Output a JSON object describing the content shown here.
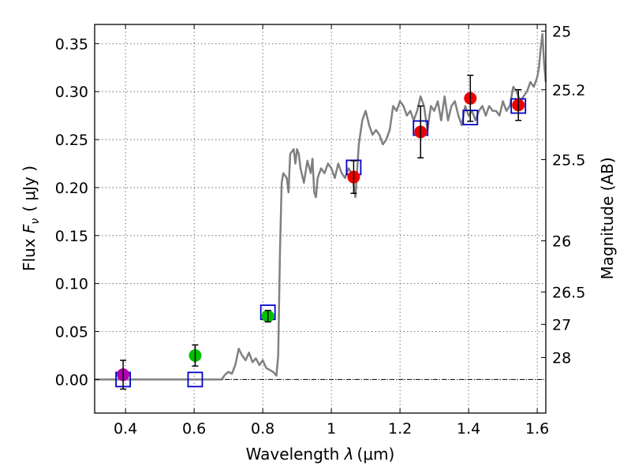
{
  "chart_data": {
    "type": "scatter",
    "title": "",
    "xlabel": {
      "prefix": "Wavelength ",
      "lambda": "λ",
      "unit": "(μm)"
    },
    "ylabel": {
      "prefix": "Flux ",
      "F": "F",
      "nu": "ν",
      "unit": "( μJy )"
    },
    "right_ylabel": "Magnitude (AB)",
    "xlim": [
      0.31,
      1.625
    ],
    "ylim": [
      -0.035,
      0.37
    ],
    "x_ticks": [
      0.4,
      0.6,
      0.8,
      1.0,
      1.2,
      1.4,
      1.6
    ],
    "x_tick_labels": [
      "0.4",
      "0.6",
      "0.8",
      "1",
      "1.2",
      "1.4",
      "1.6"
    ],
    "y_ticks": [
      0.0,
      0.05,
      0.1,
      0.15,
      0.2,
      0.25,
      0.3,
      0.35
    ],
    "y_tick_labels": [
      "0.00",
      "0.05",
      "0.10",
      "0.15",
      "0.20",
      "0.25",
      "0.30",
      "0.35"
    ],
    "right_ticks": [
      {
        "label": "25",
        "flux": 0.3631
      },
      {
        "label": "25.2",
        "flux": 0.302
      },
      {
        "label": "25.5",
        "flux": 0.2291
      },
      {
        "label": "26",
        "flux": 0.1445
      },
      {
        "label": "26.5",
        "flux": 0.0912
      },
      {
        "label": "27",
        "flux": 0.0575
      },
      {
        "label": "28",
        "flux": 0.0229
      }
    ],
    "grid": true,
    "zero_line": true,
    "colors": {
      "model": "#808080",
      "purple": "#b000b0",
      "green": "#00c000",
      "red": "#ee0000",
      "blue": "#0000cc",
      "errorbar": "#000000"
    },
    "series": [
      {
        "name": "model spectrum",
        "kind": "line",
        "x": [
          0.31,
          0.68,
          0.69,
          0.7,
          0.71,
          0.72,
          0.73,
          0.74,
          0.75,
          0.76,
          0.77,
          0.78,
          0.79,
          0.8,
          0.81,
          0.82,
          0.83,
          0.84,
          0.845,
          0.85,
          0.855,
          0.86,
          0.87,
          0.875,
          0.88,
          0.89,
          0.895,
          0.9,
          0.905,
          0.91,
          0.92,
          0.93,
          0.94,
          0.945,
          0.95,
          0.955,
          0.96,
          0.97,
          0.98,
          0.99,
          1.0,
          1.01,
          1.02,
          1.03,
          1.04,
          1.05,
          1.06,
          1.07,
          1.08,
          1.09,
          1.1,
          1.11,
          1.12,
          1.13,
          1.14,
          1.15,
          1.16,
          1.17,
          1.18,
          1.19,
          1.2,
          1.21,
          1.22,
          1.23,
          1.24,
          1.25,
          1.26,
          1.27,
          1.28,
          1.29,
          1.3,
          1.31,
          1.32,
          1.33,
          1.34,
          1.35,
          1.36,
          1.37,
          1.38,
          1.39,
          1.4,
          1.41,
          1.42,
          1.43,
          1.44,
          1.45,
          1.46,
          1.47,
          1.48,
          1.49,
          1.5,
          1.51,
          1.52,
          1.53,
          1.54,
          1.55,
          1.56,
          1.57,
          1.58,
          1.59,
          1.6,
          1.605,
          1.61,
          1.615,
          1.62,
          1.625
        ],
        "values": [
          0.0,
          0.0,
          0.005,
          0.008,
          0.006,
          0.015,
          0.032,
          0.025,
          0.02,
          0.028,
          0.018,
          0.022,
          0.015,
          0.02,
          0.012,
          0.01,
          0.008,
          0.004,
          0.025,
          0.13,
          0.205,
          0.215,
          0.21,
          0.195,
          0.235,
          0.24,
          0.225,
          0.24,
          0.235,
          0.22,
          0.205,
          0.228,
          0.215,
          0.23,
          0.195,
          0.19,
          0.21,
          0.22,
          0.215,
          0.225,
          0.22,
          0.21,
          0.225,
          0.215,
          0.21,
          0.22,
          0.215,
          0.19,
          0.245,
          0.27,
          0.28,
          0.265,
          0.255,
          0.26,
          0.255,
          0.245,
          0.25,
          0.26,
          0.285,
          0.28,
          0.29,
          0.285,
          0.275,
          0.28,
          0.27,
          0.28,
          0.295,
          0.285,
          0.26,
          0.285,
          0.28,
          0.29,
          0.27,
          0.295,
          0.27,
          0.285,
          0.29,
          0.275,
          0.265,
          0.285,
          0.275,
          0.28,
          0.27,
          0.28,
          0.285,
          0.275,
          0.285,
          0.28,
          0.28,
          0.275,
          0.29,
          0.28,
          0.285,
          0.305,
          0.3,
          0.29,
          0.295,
          0.3,
          0.31,
          0.305,
          0.315,
          0.325,
          0.345,
          0.36,
          0.33,
          0.31
        ]
      },
      {
        "name": "purple point",
        "kind": "circle",
        "x": [
          0.393
        ],
        "values": [
          0.005
        ],
        "yerr": [
          0.015
        ]
      },
      {
        "name": "green points",
        "kind": "circle",
        "x": [
          0.603,
          0.815
        ],
        "values": [
          0.025,
          0.066
        ],
        "yerr": [
          0.011,
          0.006
        ]
      },
      {
        "name": "red points",
        "kind": "circle",
        "x": [
          1.065,
          1.26,
          1.405,
          1.545
        ],
        "values": [
          0.211,
          0.258,
          0.293,
          0.286
        ],
        "yerr": [
          0.017,
          0.027,
          0.024,
          0.016
        ]
      },
      {
        "name": "model band fluxes",
        "kind": "square",
        "x": [
          0.393,
          0.603,
          0.815,
          1.065,
          1.26,
          1.405,
          1.545
        ],
        "values": [
          0.0,
          0.0,
          0.07,
          0.221,
          0.262,
          0.273,
          0.285
        ]
      }
    ]
  }
}
